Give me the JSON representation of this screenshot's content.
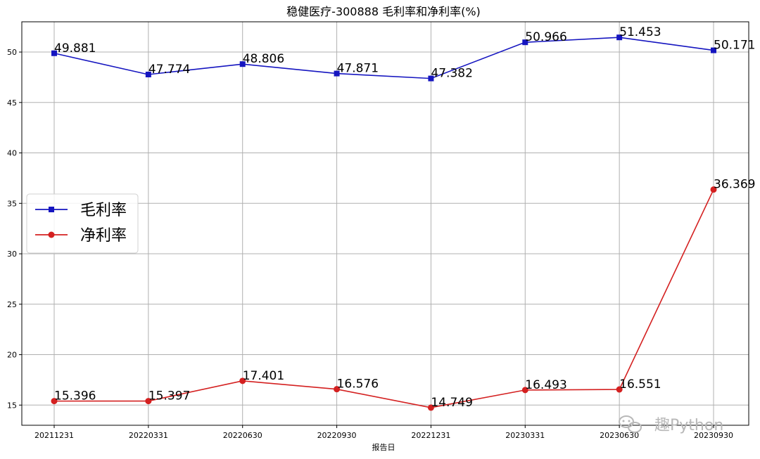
{
  "chart_data": {
    "type": "line",
    "title": "稳健医疗-300888 毛利率和净利率(%)",
    "xlabel": "报告日",
    "ylabel": "",
    "categories": [
      "20211231",
      "20220331",
      "20220630",
      "20220930",
      "20221231",
      "20230331",
      "20230630",
      "20230930"
    ],
    "ylim": [
      13,
      53
    ],
    "yticks": [
      15,
      20,
      25,
      30,
      35,
      40,
      45,
      50
    ],
    "grid": true,
    "legend_position": "center-left",
    "series": [
      {
        "name": "毛利率",
        "color": "#1515c0",
        "marker": "square",
        "values": [
          49.881,
          47.774,
          48.806,
          47.871,
          47.382,
          50.966,
          51.453,
          50.171
        ],
        "labels": [
          "49.881",
          "47.774",
          "48.806",
          "47.871",
          "47.382",
          "50.966",
          "51.453",
          "50.171"
        ]
      },
      {
        "name": "净利率",
        "color": "#d42020",
        "marker": "circle",
        "values": [
          15.396,
          15.397,
          17.401,
          16.576,
          14.749,
          16.493,
          16.551,
          36.369
        ],
        "labels": [
          "15.396",
          "15.397",
          "17.401",
          "16.576",
          "14.749",
          "16.493",
          "16.551",
          "36.369"
        ]
      }
    ]
  },
  "watermark": {
    "icon": "wechat-icon",
    "text": "趣Python"
  }
}
